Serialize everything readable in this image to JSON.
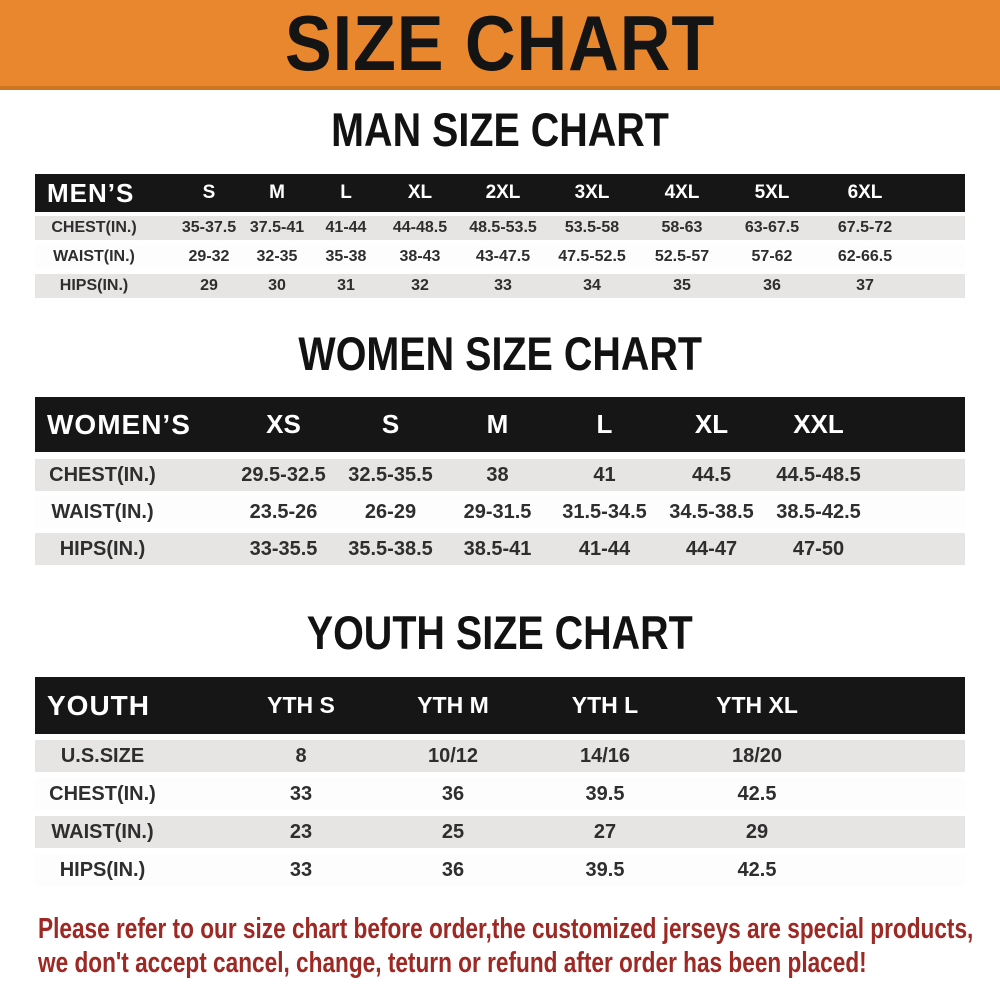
{
  "banner": {
    "title": "SIZE CHART",
    "bg_color": "#E8872E",
    "text_color": "#141414"
  },
  "chart_data": [
    {
      "type": "table",
      "title": "MAN SIZE CHART",
      "header": [
        "MEN’S",
        "S",
        "M",
        "L",
        "XL",
        "2XL",
        "3XL",
        "4XL",
        "5XL",
        "6XL"
      ],
      "rows": [
        [
          "CHEST(IN.)",
          "35-37.5",
          "37.5-41",
          "41-44",
          "44-48.5",
          "48.5-53.5",
          "53.5-58",
          "58-63",
          "63-67.5",
          "67.5-72"
        ],
        [
          "WAIST(IN.)",
          "29-32",
          "32-35",
          "35-38",
          "38-43",
          "43-47.5",
          "47.5-52.5",
          "52.5-57",
          "57-62",
          "62-66.5"
        ],
        [
          "HIPS(IN.)",
          "29",
          "30",
          "31",
          "32",
          "33",
          "34",
          "35",
          "36",
          "37"
        ]
      ]
    },
    {
      "type": "table",
      "title": "WOMEN SIZE CHART",
      "header": [
        "WOMEN’S",
        "XS",
        "S",
        "M",
        "L",
        "XL",
        "XXL"
      ],
      "rows": [
        [
          "CHEST(IN.)",
          "29.5-32.5",
          "32.5-35.5",
          "38",
          "41",
          "44.5",
          "44.5-48.5"
        ],
        [
          "WAIST(IN.)",
          "23.5-26",
          "26-29",
          "29-31.5",
          "31.5-34.5",
          "34.5-38.5",
          "38.5-42.5"
        ],
        [
          "HIPS(IN.)",
          "33-35.5",
          "35.5-38.5",
          "38.5-41",
          "41-44",
          "44-47",
          "47-50"
        ]
      ]
    },
    {
      "type": "table",
      "title": "YOUTH SIZE CHART",
      "header": [
        "YOUTH",
        "YTH S",
        "YTH M",
        "YTH L",
        "YTH XL"
      ],
      "rows": [
        [
          "U.S.SIZE",
          "8",
          "10/12",
          "14/16",
          "18/20"
        ],
        [
          "CHEST(IN.)",
          "33",
          "36",
          "39.5",
          "42.5"
        ],
        [
          "WAIST(IN.)",
          "23",
          "25",
          "27",
          "29"
        ],
        [
          "HIPS(IN.)",
          "33",
          "36",
          "39.5",
          "42.5"
        ]
      ]
    }
  ],
  "note": {
    "color": "#9E2823",
    "lines": [
      "Please refer to our size chart before order,the customized jerseys are special products,",
      "we don't accept cancel, change, teturn or refund after order has been placed!"
    ]
  }
}
